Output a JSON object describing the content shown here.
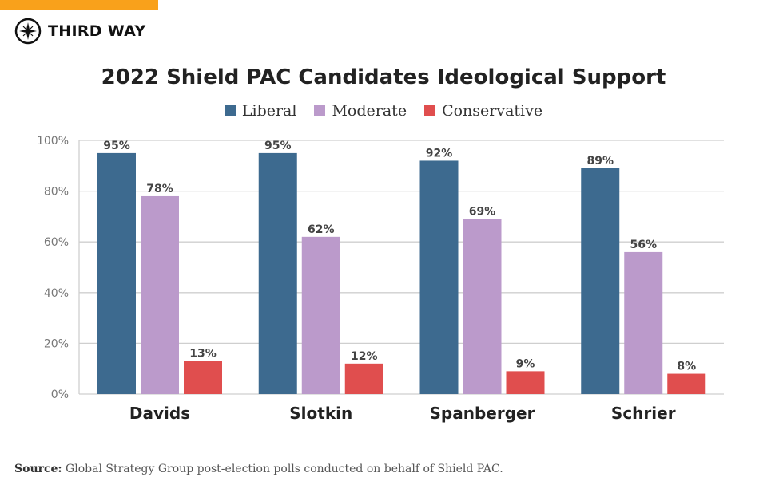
{
  "brand": {
    "name": "THIRD WAY",
    "accent": "#f9a11b"
  },
  "chart_data": {
    "type": "bar",
    "title": "2022 Shield PAC Candidates Ideological Support",
    "categories": [
      "Davids",
      "Slotkin",
      "Spanberger",
      "Schrier"
    ],
    "series": [
      {
        "name": "Liberal",
        "color": "#3d6a8f",
        "values": [
          95,
          95,
          92,
          89
        ]
      },
      {
        "name": "Moderate",
        "color": "#bb9acb",
        "values": [
          78,
          62,
          69,
          56
        ]
      },
      {
        "name": "Conservative",
        "color": "#e04e4e",
        "values": [
          13,
          12,
          9,
          8
        ]
      }
    ],
    "ylim": [
      0,
      100
    ],
    "yticks": [
      "0%",
      "20%",
      "40%",
      "60%",
      "80%",
      "100%"
    ],
    "grid": true,
    "legend": "top-center",
    "data_label_suffix": "%"
  },
  "source": {
    "label": "Source:",
    "text": " Global Strategy Group post-election polls conducted on behalf of Shield PAC."
  }
}
